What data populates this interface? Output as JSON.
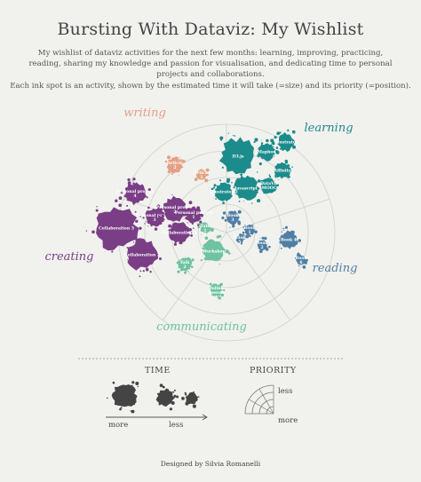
{
  "title": "Bursting With Dataviz: My Wishlist",
  "subtitle": "My wishlist of dataviz activities for the next few months: learning, improving, practicing, reading, sharing my knowledge and passion for visualisation, and dedicating time to personal projects and collaborations.",
  "note": "Each ink spot is an activity, shown by the estimated time it will take (=size) and its priority (=position).",
  "footer": "Designed by Silvia Romanelli",
  "colors": {
    "writing": "#e3a184",
    "learning": "#1c8b8b",
    "reading": "#4f7fa3",
    "communicating": "#6fc3a0",
    "creating": "#7a3e86",
    "ink": "#444444",
    "grid": "#cfcfcc"
  },
  "chart_data": {
    "type": "scatter",
    "encoding": "radial: angle = category sector, radius = priority, spot size = estimated time",
    "categories": [
      {
        "name": "writing",
        "label": "writing"
      },
      {
        "name": "learning",
        "label": "learning"
      },
      {
        "name": "reading",
        "label": "reading"
      },
      {
        "name": "communicating",
        "label": "communicating"
      },
      {
        "name": "creating",
        "label": "creating"
      }
    ],
    "activities": [
      {
        "label": "Article 2",
        "category": "writing"
      },
      {
        "label": "Article 1",
        "category": "writing"
      },
      {
        "label": "D3.js",
        "category": "learning"
      },
      {
        "label": "Mapbox",
        "category": "learning"
      },
      {
        "label": "Illustrator",
        "category": "learning"
      },
      {
        "label": "Affinity",
        "category": "learning"
      },
      {
        "label": "Javascript",
        "category": "learning"
      },
      {
        "label": "DataViz MOOC",
        "category": "learning"
      },
      {
        "label": "Illustrator 2",
        "category": "learning"
      },
      {
        "label": "Book 3",
        "category": "reading"
      },
      {
        "label": "Book 1",
        "category": "reading"
      },
      {
        "label": "Book 2",
        "category": "reading"
      },
      {
        "label": "Book 4",
        "category": "reading"
      },
      {
        "label": "Book 5",
        "category": "reading"
      },
      {
        "label": "Book 6",
        "category": "reading"
      },
      {
        "label": "Workshop",
        "category": "communicating"
      },
      {
        "label": "Talk 1",
        "category": "communicating"
      },
      {
        "label": "Talk 2",
        "category": "communicating"
      },
      {
        "label": "Online Speech",
        "category": "communicating"
      },
      {
        "label": "Personal project 4",
        "category": "creating"
      },
      {
        "label": "Personal project 3",
        "category": "creating"
      },
      {
        "label": "Personal project 2",
        "category": "creating"
      },
      {
        "label": "Personal project 1",
        "category": "creating"
      },
      {
        "label": "Collaboration 1",
        "category": "creating"
      },
      {
        "label": "Collaboration 3",
        "category": "creating"
      },
      {
        "label": "Collaboration 2",
        "category": "creating"
      }
    ],
    "legend": {
      "time_title": "TIME",
      "time_more": "more",
      "time_less": "less",
      "priority_title": "PRIORITY",
      "priority_less": "less",
      "priority_more": "more"
    }
  }
}
